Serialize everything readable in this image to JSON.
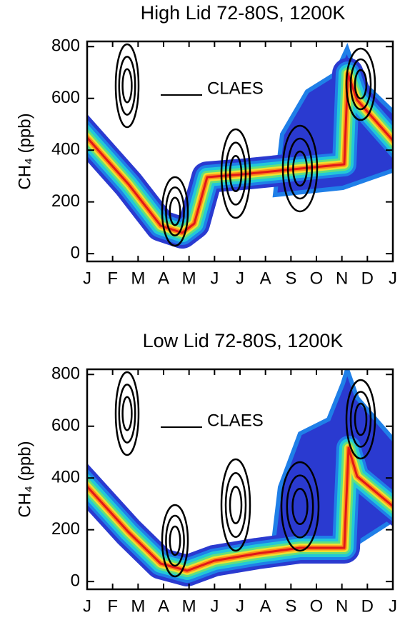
{
  "chart_data": [
    {
      "type": "contour",
      "title": "High Lid 72-80S, 1200K",
      "ylabel": "CH₄ (ppb)",
      "categories": [
        "J",
        "F",
        "M",
        "A",
        "M",
        "J",
        "J",
        "A",
        "S",
        "O",
        "N",
        "D",
        "J"
      ],
      "ylim": [
        -30,
        820
      ],
      "yticks": [
        0,
        200,
        400,
        600,
        800
      ],
      "series": [
        {
          "name": "CLAES",
          "color": "#000000"
        }
      ]
    },
    {
      "type": "contour",
      "title": "Low Lid 72-80S, 1200K",
      "ylabel": "CH₄ (ppb)",
      "categories": [
        "J",
        "F",
        "M",
        "A",
        "M",
        "J",
        "J",
        "A",
        "S",
        "O",
        "N",
        "D",
        "J"
      ],
      "ylim": [
        -30,
        820
      ],
      "yticks": [
        0,
        200,
        400,
        600,
        800
      ],
      "series": [
        {
          "name": "CLAES",
          "color": "#000000"
        }
      ]
    }
  ]
}
